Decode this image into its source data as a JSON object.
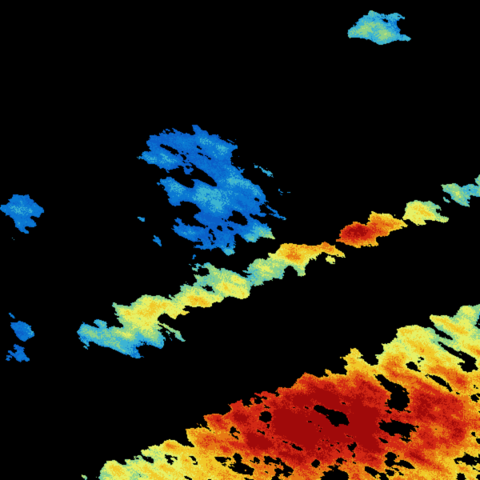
{
  "image": {
    "kind": "weather radar reflectivity",
    "background_color": "#000000",
    "palette": [
      "#0a5fc8",
      "#0a78d2",
      "#3cb4d2",
      "#8cd28c",
      "#e6f064",
      "#f0c828",
      "#e67814",
      "#d22814",
      "#a00a0a"
    ]
  }
}
